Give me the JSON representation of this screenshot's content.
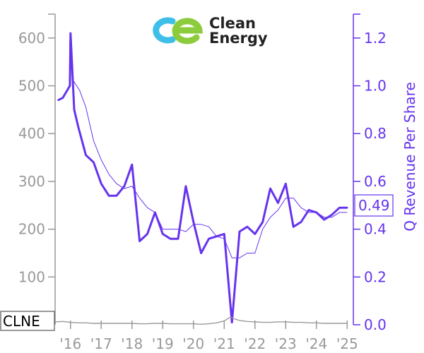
{
  "logo": {
    "line1": "Clean",
    "line2": "Energy",
    "mark_color_left": "#3fbfe8",
    "mark_color_right": "#8ccc3c"
  },
  "ticker": "CLNE",
  "last_value_label": "0.49",
  "colors": {
    "revenue": "#6633ee",
    "price": "#999999",
    "left_axis": "#999999"
  },
  "chart_data": {
    "type": "line",
    "title": "",
    "xlabel": "",
    "ylabel_right": "Q Revenue Per Share",
    "ylabel_left": "",
    "x_tick_labels": [
      "'16",
      "'17",
      "'18",
      "'19",
      "'20",
      "'21",
      "'22",
      "'23",
      "'24",
      "'25"
    ],
    "x_tick_years": [
      2016,
      2017,
      2018,
      2019,
      2020,
      2021,
      2022,
      2023,
      2024,
      2025
    ],
    "x_range": [
      2015.5,
      2025.2
    ],
    "left_axis": {
      "range": [
        0,
        650
      ],
      "ticks": [
        100,
        200,
        300,
        400,
        500,
        600
      ],
      "labels": [
        "100",
        "200",
        "300",
        "400",
        "500",
        "600"
      ]
    },
    "right_axis": {
      "range": [
        0,
        1.3
      ],
      "ticks": [
        0.0,
        0.2,
        0.4,
        0.6,
        0.8,
        1.0,
        1.2
      ],
      "labels": [
        "0.0",
        "0.2",
        "0.4",
        "0.6",
        "0.8",
        "1.0",
        "1.2"
      ]
    },
    "series": [
      {
        "axis": "right",
        "style": "thick",
        "x": [
          2015.6,
          2015.75,
          2015.98,
          2016.0,
          2016.12,
          2016.25,
          2016.5,
          2016.75,
          2017.0,
          2017.25,
          2017.5,
          2017.75,
          2018.0,
          2018.25,
          2018.5,
          2018.75,
          2019.0,
          2019.25,
          2019.5,
          2019.75,
          2020.0,
          2020.25,
          2020.5,
          2020.75,
          2021.0,
          2021.25,
          2021.5,
          2021.75,
          2022.0,
          2022.25,
          2022.5,
          2022.75,
          2023.0,
          2023.25,
          2023.5,
          2023.75,
          2024.0,
          2024.25,
          2024.5,
          2024.75,
          2025.0
        ],
        "values": [
          0.94,
          0.95,
          1.0,
          1.22,
          0.9,
          0.83,
          0.71,
          0.68,
          0.59,
          0.54,
          0.54,
          0.58,
          0.67,
          0.35,
          0.38,
          0.47,
          0.38,
          0.36,
          0.36,
          0.58,
          0.43,
          0.3,
          0.36,
          0.37,
          0.38,
          0.01,
          0.39,
          0.41,
          0.38,
          0.43,
          0.57,
          0.51,
          0.59,
          0.41,
          0.43,
          0.48,
          0.47,
          0.44,
          0.46,
          0.49,
          0.49
        ]
      },
      {
        "axis": "right",
        "style": "thin",
        "x": [
          2016.1,
          2016.3,
          2016.5,
          2016.75,
          2017.0,
          2017.25,
          2017.5,
          2017.75,
          2018.0,
          2018.25,
          2018.5,
          2018.75,
          2019.0,
          2019.25,
          2019.5,
          2019.75,
          2020.0,
          2020.25,
          2020.5,
          2020.75,
          2021.0,
          2021.25,
          2021.5,
          2021.75,
          2022.0,
          2022.25,
          2022.5,
          2022.75,
          2023.0,
          2023.25,
          2023.5,
          2023.75,
          2024.0,
          2024.25,
          2024.5,
          2024.75,
          2025.0
        ],
        "values": [
          1.02,
          0.98,
          0.91,
          0.77,
          0.69,
          0.63,
          0.59,
          0.57,
          0.58,
          0.53,
          0.49,
          0.47,
          0.4,
          0.4,
          0.4,
          0.39,
          0.42,
          0.42,
          0.41,
          0.37,
          0.36,
          0.28,
          0.28,
          0.3,
          0.3,
          0.4,
          0.45,
          0.48,
          0.53,
          0.53,
          0.49,
          0.47,
          0.47,
          0.45,
          0.45,
          0.47,
          0.47
        ]
      },
      {
        "axis": "left",
        "style": "price",
        "x": [
          2015.5,
          2015.75,
          2016.0,
          2016.25,
          2016.5,
          2016.75,
          2017.0,
          2017.25,
          2017.5,
          2017.75,
          2018.0,
          2018.25,
          2018.5,
          2018.75,
          2019.0,
          2019.25,
          2019.5,
          2019.75,
          2020.0,
          2020.25,
          2020.5,
          2020.75,
          2021.0,
          2021.2,
          2021.35,
          2021.5,
          2021.75,
          2022.0,
          2022.25,
          2022.5,
          2022.75,
          2023.0,
          2023.25,
          2023.5,
          2023.75,
          2024.0,
          2024.25,
          2024.5,
          2024.75,
          2025.0
        ],
        "values": [
          6,
          7,
          5,
          4,
          4,
          3,
          3,
          3,
          3,
          3,
          3,
          2,
          2,
          3,
          3,
          2,
          2,
          2,
          2,
          1,
          2,
          4,
          8,
          16,
          12,
          9,
          7,
          6,
          5,
          5,
          6,
          6,
          5,
          5,
          4,
          4,
          3,
          3,
          3,
          3
        ]
      }
    ],
    "legend": "none",
    "grid": false
  }
}
